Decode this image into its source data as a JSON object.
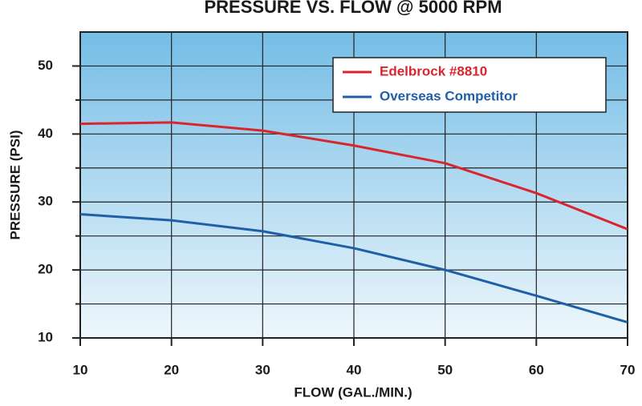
{
  "chart_data": {
    "type": "line",
    "title": "PRESSURE VS. FLOW @ 5000 RPM",
    "x_label": "FLOW (GAL./MIN.)",
    "y_label": "PRESSURE (PSI)",
    "x": [
      10,
      20,
      30,
      40,
      50,
      60,
      70
    ],
    "series": [
      {
        "name": "Edelbrock #8810",
        "color": "#d9262e",
        "values": [
          41.5,
          41.7,
          40.5,
          38.3,
          35.7,
          31.3,
          26.0
        ]
      },
      {
        "name": "Overseas Competitor",
        "color": "#1f5fa8",
        "values": [
          28.2,
          27.3,
          25.7,
          23.2,
          20.0,
          16.2,
          12.3
        ]
      }
    ],
    "xlim": [
      10,
      70
    ],
    "xticks": [
      10,
      20,
      30,
      40,
      50,
      60,
      70
    ],
    "ylim": [
      10,
      55
    ],
    "yticks": [
      10,
      20,
      30,
      40,
      50
    ],
    "yminor": [
      15,
      25,
      35,
      45
    ],
    "grid": true,
    "legend": "upper right"
  }
}
